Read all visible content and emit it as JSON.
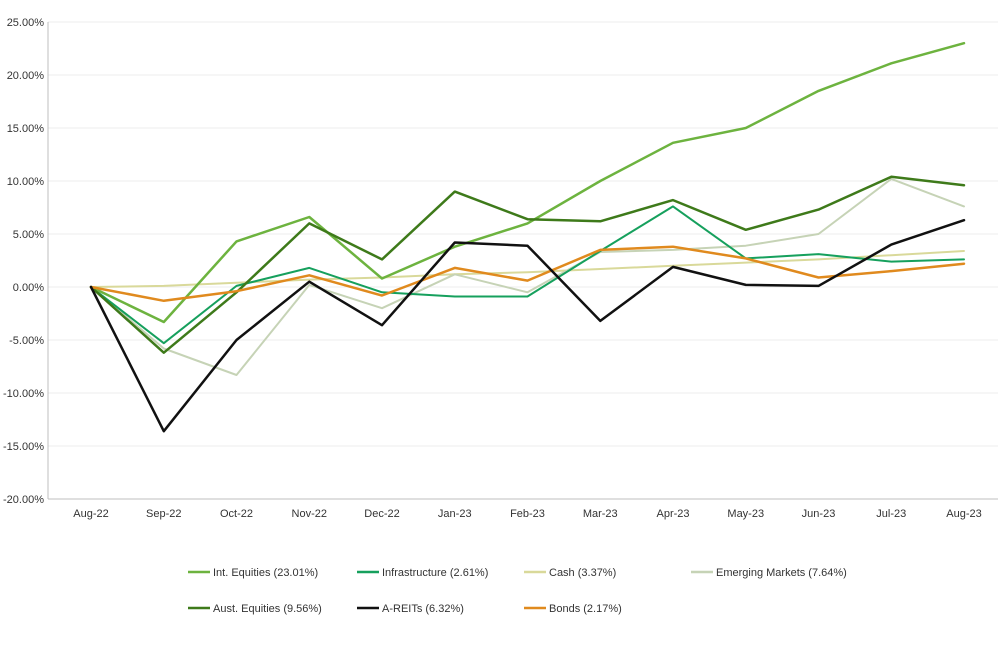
{
  "chart_data": {
    "type": "line",
    "categories": [
      "Aug-22",
      "Sep-22",
      "Oct-22",
      "Nov-22",
      "Dec-22",
      "Jan-23",
      "Feb-23",
      "Mar-23",
      "Apr-23",
      "May-23",
      "Jun-23",
      "Jul-23",
      "Aug-23"
    ],
    "ylim": [
      -20,
      25
    ],
    "ytick_values": [
      25,
      20,
      15,
      10,
      5,
      0,
      -5,
      -10,
      -15,
      -20
    ],
    "ytick_labels": [
      "25.00%",
      "20.00%",
      "15.00%",
      "10.00%",
      "5.00%",
      "0.00%",
      "-5.00%",
      "-10.00%",
      "-15.00%",
      "-20.00%"
    ],
    "grid": true,
    "legend_position": "bottom",
    "series": [
      {
        "name": "Int. Equities (23.01%)",
        "color": "#6db33f",
        "values": [
          0,
          -3.3,
          4.3,
          6.6,
          0.8,
          3.8,
          6.0,
          10.0,
          13.6,
          15.0,
          18.5,
          21.1,
          23.0
        ]
      },
      {
        "name": "Infrastructure (2.61%)",
        "color": "#16a05d",
        "values": [
          0,
          -5.3,
          0.1,
          1.8,
          -0.5,
          -0.9,
          -0.9,
          3.4,
          7.6,
          2.7,
          3.1,
          2.4,
          2.6
        ]
      },
      {
        "name": "Cash (3.37%)",
        "color": "#d9d99a",
        "values": [
          0,
          0.1,
          0.4,
          0.7,
          0.9,
          1.2,
          1.4,
          1.7,
          2.0,
          2.3,
          2.6,
          3.0,
          3.4
        ]
      },
      {
        "name": "Emerging Markets (7.64%)",
        "color": "#c6d3b6",
        "values": [
          0,
          -5.8,
          -8.3,
          0.2,
          -2.0,
          1.2,
          -0.5,
          3.3,
          3.5,
          3.9,
          5.0,
          10.2,
          7.6
        ]
      },
      {
        "name": "Aust. Equities (9.56%)",
        "color": "#3e7a1a",
        "values": [
          0,
          -6.2,
          -0.5,
          6.0,
          2.6,
          9.0,
          6.4,
          6.2,
          8.2,
          5.4,
          7.3,
          10.4,
          9.6
        ]
      },
      {
        "name": "A-REITs (6.32%)",
        "color": "#111111",
        "values": [
          0,
          -13.6,
          -5.0,
          0.5,
          -3.6,
          4.2,
          3.9,
          -3.2,
          1.9,
          0.2,
          0.1,
          4.0,
          6.3
        ]
      },
      {
        "name": "Bonds (2.17%)",
        "color": "#e08a1e",
        "values": [
          0,
          -1.3,
          -0.4,
          1.1,
          -0.8,
          1.8,
          0.6,
          3.5,
          3.8,
          2.7,
          0.9,
          1.5,
          2.2
        ]
      }
    ]
  }
}
